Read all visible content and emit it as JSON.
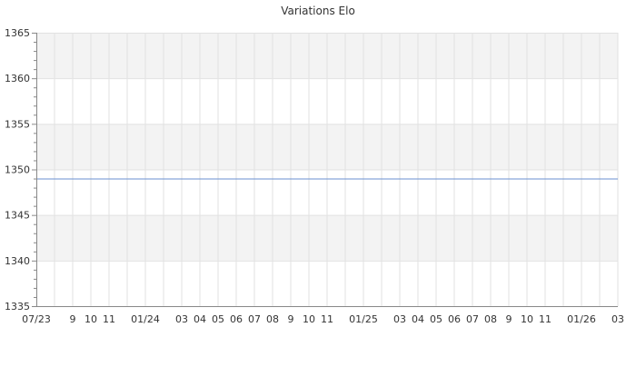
{
  "chart_data": {
    "type": "line",
    "title": "Variations Elo",
    "xlabel": "",
    "ylabel": "",
    "ylim": [
      1335,
      1365
    ],
    "y_ticks": [
      1335,
      1340,
      1345,
      1350,
      1355,
      1360,
      1365
    ],
    "x_tick_labels": [
      "07/23",
      "",
      "9",
      "10",
      "11",
      "",
      "01/24",
      "",
      "03",
      "04",
      "05",
      "06",
      "07",
      "08",
      "9",
      "10",
      "11",
      "",
      "01/25",
      "",
      "03",
      "04",
      "05",
      "06",
      "07",
      "08",
      "9",
      "10",
      "11",
      "",
      "01/26",
      "",
      "03"
    ],
    "grid": true,
    "series": [
      {
        "values": [
          1349,
          1349
        ],
        "x_range": [
          "07/23",
          "03"
        ],
        "color": "#6a8fd0"
      }
    ],
    "colors": {
      "band": "#f3f3f3",
      "grid": "#e2e2e2",
      "axis": "#888888"
    }
  }
}
